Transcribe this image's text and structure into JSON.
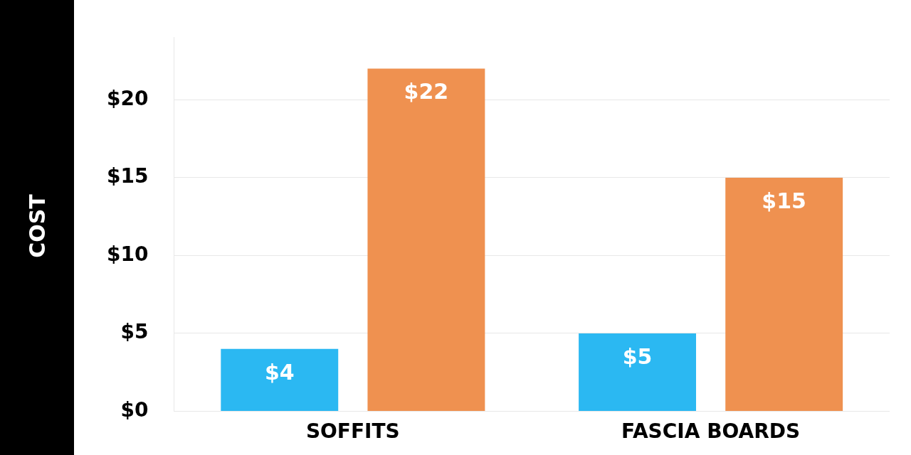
{
  "chart_data": {
    "type": "bar",
    "ylabel": "COST",
    "categories": [
      "SOFFITS",
      "FASCIA BOARDS"
    ],
    "series": [
      {
        "color": "#2bb8f2",
        "values": [
          4,
          5
        ],
        "value_labels": [
          "$4",
          "$5"
        ]
      },
      {
        "color": "#ef9150",
        "values": [
          22,
          15
        ],
        "value_labels": [
          "$22",
          "$15"
        ]
      }
    ],
    "ylim": [
      0,
      24
    ],
    "yticks": [
      {
        "value": 0,
        "label": "$0"
      },
      {
        "value": 5,
        "label": "$5"
      },
      {
        "value": 10,
        "label": "$10"
      },
      {
        "value": 15,
        "label": "$15"
      },
      {
        "value": 20,
        "label": "$20"
      }
    ],
    "grid": "y",
    "legend": false
  }
}
